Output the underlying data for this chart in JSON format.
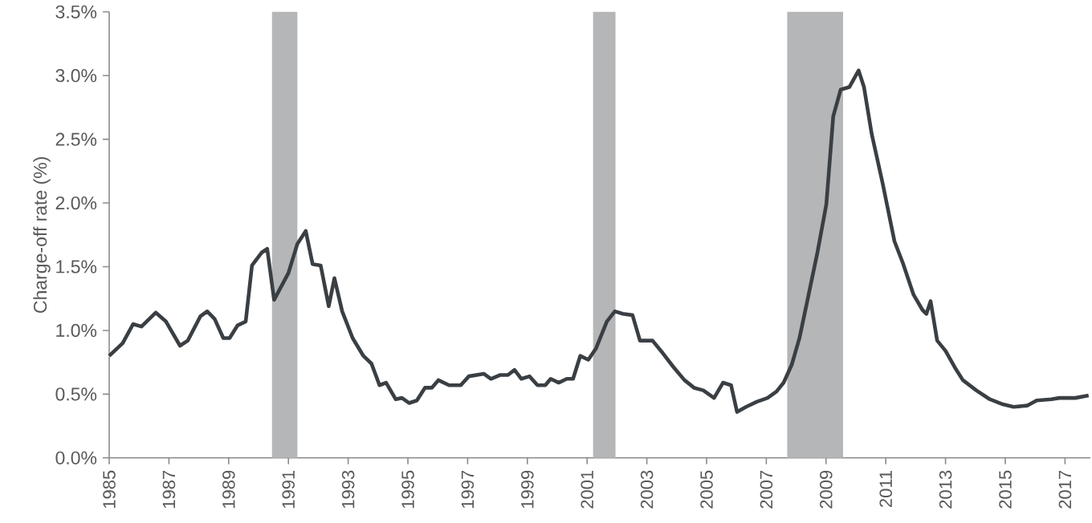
{
  "chart_data": {
    "type": "line",
    "ylabel": "Charge-off rate (%)",
    "x": [
      1985.0,
      1985.45,
      1985.8,
      1986.08,
      1986.56,
      1986.9,
      1987.37,
      1987.63,
      1988.05,
      1988.28,
      1988.53,
      1988.82,
      1989.03,
      1989.3,
      1989.57,
      1989.78,
      1990.1,
      1990.29,
      1990.52,
      1991.0,
      1991.3,
      1991.58,
      1991.81,
      1992.08,
      1992.35,
      1992.54,
      1992.8,
      1993.15,
      1993.51,
      1993.78,
      1994.05,
      1994.27,
      1994.59,
      1994.8,
      1995.04,
      1995.3,
      1995.57,
      1995.8,
      1996.02,
      1996.38,
      1996.77,
      1997.04,
      1997.54,
      1997.78,
      1998.08,
      1998.35,
      1998.57,
      1998.8,
      1999.07,
      1999.34,
      1999.6,
      1999.78,
      2000.05,
      2000.32,
      2000.53,
      2000.77,
      2001.04,
      2001.3,
      2001.66,
      2001.93,
      2002.2,
      2002.52,
      2002.77,
      2003.19,
      2003.54,
      2003.9,
      2004.26,
      2004.58,
      2004.89,
      2005.25,
      2005.55,
      2005.82,
      2006.02,
      2006.32,
      2006.68,
      2007.04,
      2007.34,
      2007.58,
      2007.85,
      2008.11,
      2008.38,
      2008.71,
      2009.01,
      2009.24,
      2009.49,
      2009.78,
      2010.09,
      2010.27,
      2010.53,
      2010.89,
      2011.29,
      2011.57,
      2011.93,
      2012.23,
      2012.36,
      2012.5,
      2012.72,
      2013.0,
      2013.31,
      2013.58,
      2014.03,
      2014.48,
      2014.92,
      2015.28,
      2015.73,
      2016.05,
      2016.54,
      2016.81,
      2017.34,
      2017.79
    ],
    "series": [
      {
        "color": "#3a3f44",
        "values": [
          0.8,
          0.9,
          1.05,
          1.03,
          1.14,
          1.07,
          0.88,
          0.92,
          1.11,
          1.15,
          1.09,
          0.94,
          0.94,
          1.04,
          1.07,
          1.51,
          1.61,
          1.64,
          1.24,
          1.45,
          1.68,
          1.78,
          1.52,
          1.51,
          1.19,
          1.41,
          1.15,
          0.94,
          0.8,
          0.74,
          0.57,
          0.59,
          0.46,
          0.47,
          0.43,
          0.45,
          0.55,
          0.55,
          0.61,
          0.57,
          0.57,
          0.64,
          0.66,
          0.62,
          0.65,
          0.65,
          0.69,
          0.62,
          0.64,
          0.57,
          0.57,
          0.62,
          0.59,
          0.62,
          0.62,
          0.8,
          0.77,
          0.86,
          1.07,
          1.15,
          1.13,
          1.12,
          0.92,
          0.92,
          0.82,
          0.71,
          0.61,
          0.55,
          0.53,
          0.47,
          0.59,
          0.57,
          0.36,
          0.4,
          0.44,
          0.47,
          0.52,
          0.59,
          0.73,
          0.94,
          1.24,
          1.61,
          1.99,
          2.68,
          2.89,
          2.91,
          3.04,
          2.91,
          2.54,
          2.16,
          1.7,
          1.53,
          1.28,
          1.16,
          1.13,
          1.23,
          0.92,
          0.84,
          0.71,
          0.61,
          0.53,
          0.46,
          0.42,
          0.4,
          0.41,
          0.45,
          0.46,
          0.47,
          0.47,
          0.49
        ]
      }
    ],
    "xlim": [
      1985,
      2017.85
    ],
    "xticks": [
      1985,
      1987,
      1989,
      1991,
      1993,
      1995,
      1997,
      1999,
      2001,
      2003,
      2005,
      2007,
      2009,
      2011,
      2013,
      2015,
      2017
    ],
    "ylim": [
      0,
      3.5
    ],
    "yticks": [
      {
        "value": 0,
        "label": "0.0%"
      },
      {
        "value": 0.5,
        "label": "0.5%"
      },
      {
        "value": 1.0,
        "label": "1.0%"
      },
      {
        "value": 1.5,
        "label": "1.5%"
      },
      {
        "value": 2.0,
        "label": "2.0%"
      },
      {
        "value": 2.5,
        "label": "2.5%"
      },
      {
        "value": 3.0,
        "label": "3.0%"
      },
      {
        "value": 3.5,
        "label": "3.5%"
      }
    ],
    "bands": [
      {
        "axis": "x",
        "from": 1990.45,
        "to": 1991.3,
        "color": "#b4b6b8"
      },
      {
        "axis": "x",
        "from": 2001.2,
        "to": 2001.95,
        "color": "#b4b6b8"
      },
      {
        "axis": "x",
        "from": 2007.7,
        "to": 2009.57,
        "color": "#b4b6b8"
      }
    ],
    "line_style": "solid"
  }
}
